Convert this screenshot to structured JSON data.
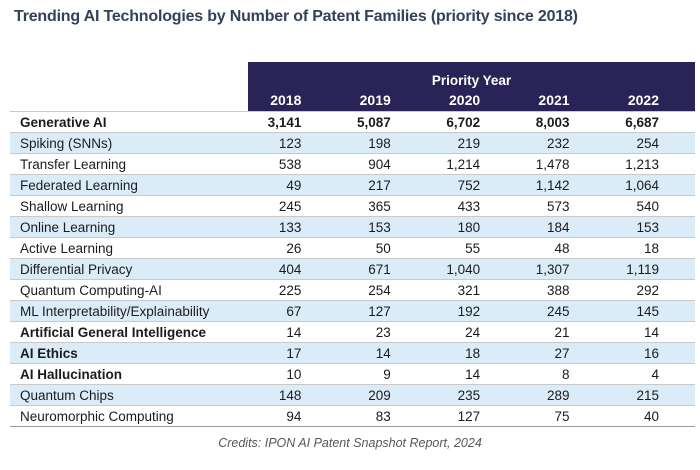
{
  "title": "Trending AI Technologies by Number of Patent Families (priority since 2018)",
  "table": {
    "header": {
      "group_label": "Priority Year",
      "years": [
        "2018",
        "2019",
        "2020",
        "2021",
        "2022"
      ]
    },
    "rows": [
      {
        "label": "Generative AI",
        "values": [
          "3,141",
          "5,087",
          "6,702",
          "8,003",
          "6,687"
        ],
        "emphasis": "row"
      },
      {
        "label": "Spiking (SNNs)",
        "values": [
          "123",
          "198",
          "219",
          "232",
          "254"
        ],
        "emphasis": "none"
      },
      {
        "label": "Transfer Learning",
        "values": [
          "538",
          "904",
          "1,214",
          "1,478",
          "1,213"
        ],
        "emphasis": "none"
      },
      {
        "label": "Federated Learning",
        "values": [
          "49",
          "217",
          "752",
          "1,142",
          "1,064"
        ],
        "emphasis": "none"
      },
      {
        "label": "Shallow Learning",
        "values": [
          "245",
          "365",
          "433",
          "573",
          "540"
        ],
        "emphasis": "none"
      },
      {
        "label": "Online Learning",
        "values": [
          "133",
          "153",
          "180",
          "184",
          "153"
        ],
        "emphasis": "none"
      },
      {
        "label": "Active Learning",
        "values": [
          "26",
          "50",
          "55",
          "48",
          "18"
        ],
        "emphasis": "none"
      },
      {
        "label": "Differential Privacy",
        "values": [
          "404",
          "671",
          "1,040",
          "1,307",
          "1,119"
        ],
        "emphasis": "none"
      },
      {
        "label": "Quantum Computing-AI",
        "values": [
          "225",
          "254",
          "321",
          "388",
          "292"
        ],
        "emphasis": "none"
      },
      {
        "label": "ML Interpretability/Explainability",
        "values": [
          "67",
          "127",
          "192",
          "245",
          "145"
        ],
        "emphasis": "none"
      },
      {
        "label": "Artificial General Intelligence",
        "values": [
          "14",
          "23",
          "24",
          "21",
          "14"
        ],
        "emphasis": "label"
      },
      {
        "label": "AI Ethics",
        "values": [
          "17",
          "14",
          "18",
          "27",
          "16"
        ],
        "emphasis": "label"
      },
      {
        "label": "AI Hallucination",
        "values": [
          "10",
          "9",
          "14",
          "8",
          "4"
        ],
        "emphasis": "label"
      },
      {
        "label": "Quantum Chips",
        "values": [
          "148",
          "209",
          "235",
          "289",
          "215"
        ],
        "emphasis": "none"
      },
      {
        "label": "Neuromorphic Computing",
        "values": [
          "94",
          "83",
          "127",
          "75",
          "40"
        ],
        "emphasis": "none"
      }
    ]
  },
  "footer": {
    "credits": "Credits: IPON AI Patent Snapshot Report, 2024"
  },
  "colors": {
    "header_bg": "#292357",
    "stripe": "#dbecf9",
    "title_text": "#33415a",
    "row_border": "#c9c9c9"
  },
  "chart_data": {
    "type": "table",
    "title": "Trending AI Technologies by Number of Patent Families (priority since 2018)",
    "column_group_label": "Priority Year",
    "columns": [
      "2018",
      "2019",
      "2020",
      "2021",
      "2022"
    ],
    "series": [
      {
        "name": "Generative AI",
        "values": [
          3141,
          5087,
          6702,
          8003,
          6687
        ]
      },
      {
        "name": "Spiking (SNNs)",
        "values": [
          123,
          198,
          219,
          232,
          254
        ]
      },
      {
        "name": "Transfer Learning",
        "values": [
          538,
          904,
          1214,
          1478,
          1213
        ]
      },
      {
        "name": "Federated Learning",
        "values": [
          49,
          217,
          752,
          1142,
          1064
        ]
      },
      {
        "name": "Shallow Learning",
        "values": [
          245,
          365,
          433,
          573,
          540
        ]
      },
      {
        "name": "Online Learning",
        "values": [
          133,
          153,
          180,
          184,
          153
        ]
      },
      {
        "name": "Active Learning",
        "values": [
          26,
          50,
          55,
          48,
          18
        ]
      },
      {
        "name": "Differential Privacy",
        "values": [
          404,
          671,
          1040,
          1307,
          1119
        ]
      },
      {
        "name": "Quantum Computing-AI",
        "values": [
          225,
          254,
          321,
          388,
          292
        ]
      },
      {
        "name": "ML Interpretability/Explainability",
        "values": [
          67,
          127,
          192,
          245,
          145
        ]
      },
      {
        "name": "Artificial General Intelligence",
        "values": [
          14,
          23,
          24,
          21,
          14
        ]
      },
      {
        "name": "AI Ethics",
        "values": [
          17,
          14,
          18,
          27,
          16
        ]
      },
      {
        "name": "AI Hallucination",
        "values": [
          10,
          9,
          14,
          8,
          4
        ]
      },
      {
        "name": "Quantum Chips",
        "values": [
          148,
          209,
          235,
          289,
          215
        ]
      },
      {
        "name": "Neuromorphic Computing",
        "values": [
          94,
          83,
          127,
          75,
          40
        ]
      }
    ],
    "annotation": "Credits: IPON AI Patent Snapshot Report, 2024"
  }
}
